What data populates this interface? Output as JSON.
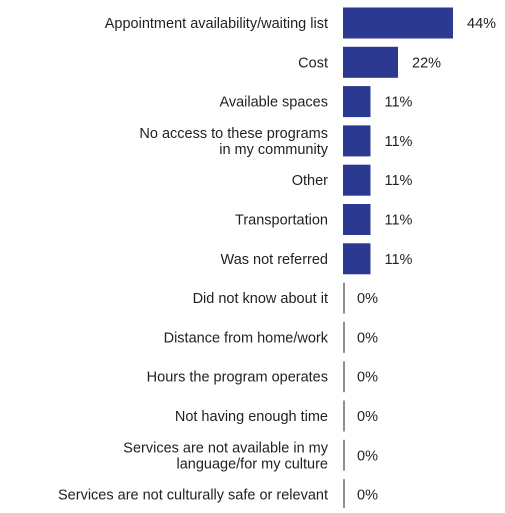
{
  "chart_data": {
    "type": "bar",
    "orientation": "horizontal",
    "title": "",
    "xlabel": "",
    "ylabel": "",
    "xlim": [
      0,
      100
    ],
    "grid": false,
    "legend": "none",
    "bar_color": "#2b3990",
    "categories": [
      [
        "Appointment availability/waiting list"
      ],
      [
        "Cost"
      ],
      [
        "Available spaces"
      ],
      [
        "No access to these programs",
        "in my community"
      ],
      [
        "Other"
      ],
      [
        "Transportation"
      ],
      [
        "Was not referred"
      ],
      [
        "Did not know about it"
      ],
      [
        "Distance from home/work"
      ],
      [
        "Hours the program operates"
      ],
      [
        "Not having enough time"
      ],
      [
        "Services are not available in my",
        "language/for my culture"
      ],
      [
        "Services are not culturally safe or relevant"
      ]
    ],
    "values": [
      44,
      22,
      11,
      11,
      11,
      11,
      11,
      0,
      0,
      0,
      0,
      0,
      0
    ],
    "value_labels": [
      "44%",
      "22%",
      "11%",
      "11%",
      "11%",
      "11%",
      "11%",
      "0%",
      "0%",
      "0%",
      "0%",
      "0%",
      "0%"
    ]
  }
}
